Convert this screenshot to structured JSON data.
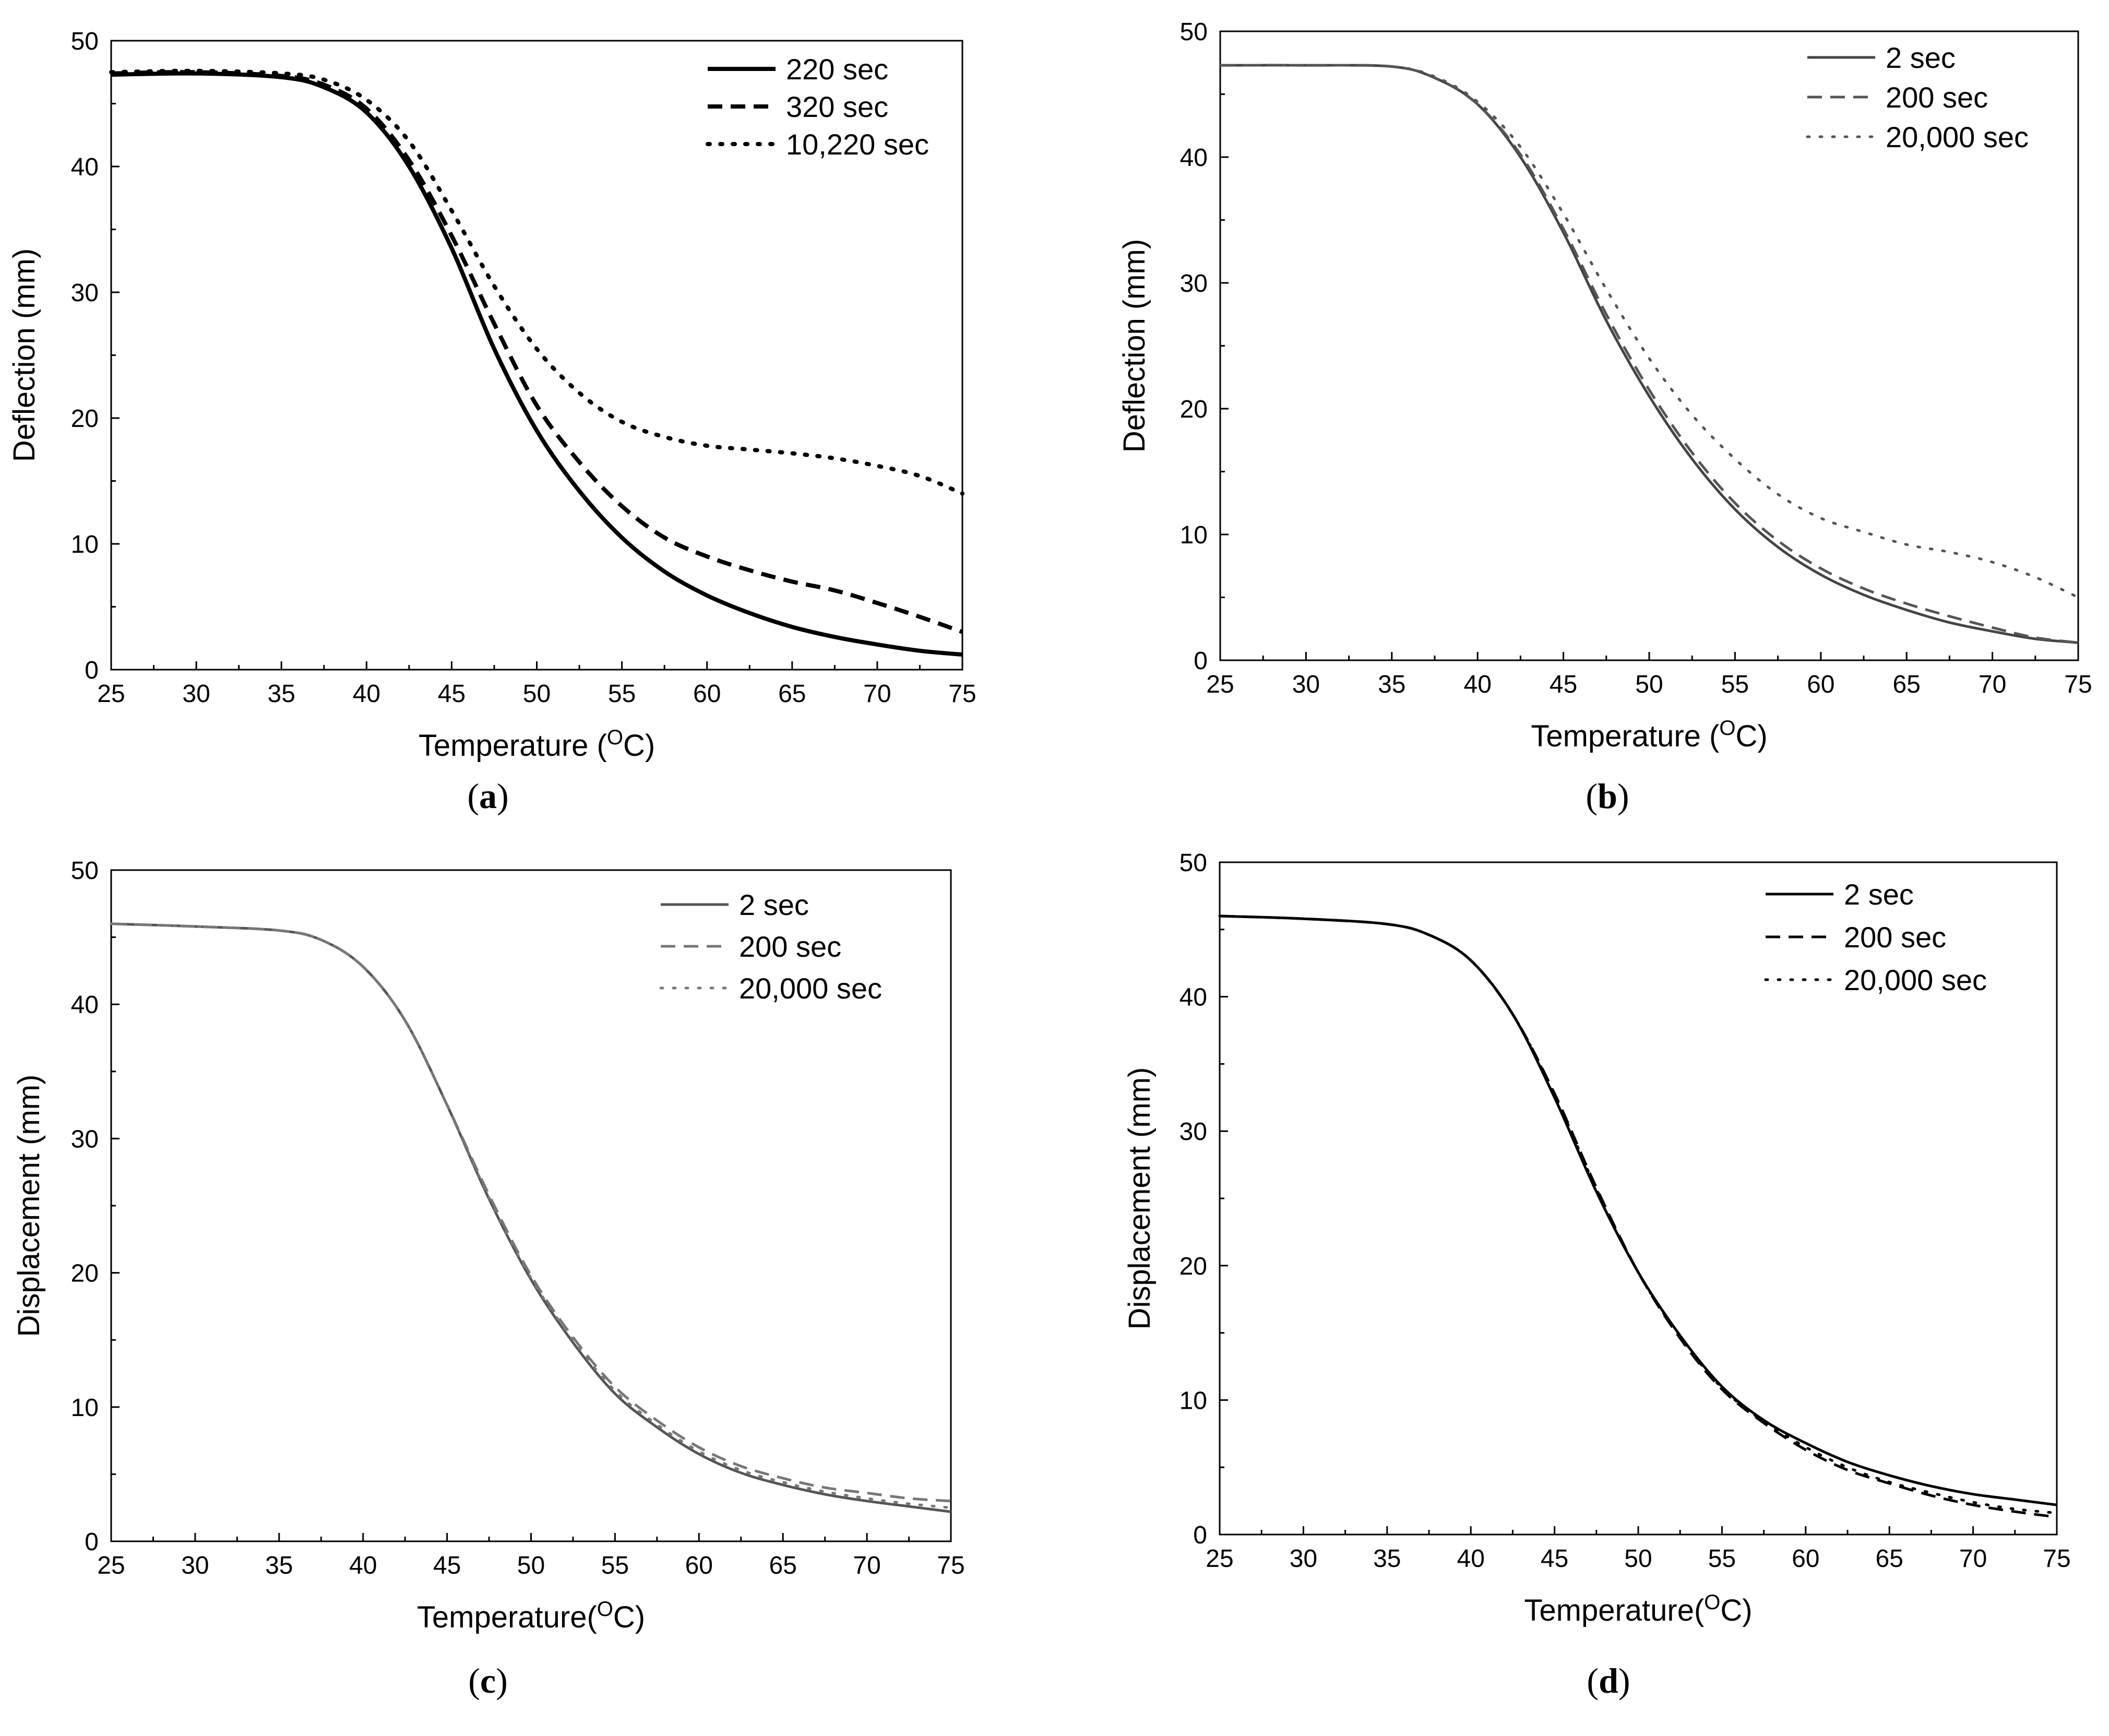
{
  "figure": {
    "panels": [
      "a",
      "b",
      "c",
      "d"
    ]
  },
  "chart_data": [
    {
      "type": "line",
      "caption_letter": "a",
      "caption_open": "(",
      "caption_close": ")",
      "xlabel": "Temperature (",
      "xlabel_sup": "O",
      "xlabel_end": "C)",
      "ylabel": "Deflection (mm)",
      "xlim": [
        25,
        75
      ],
      "ylim": [
        0,
        50
      ],
      "xticks": [
        25,
        30,
        35,
        40,
        45,
        50,
        55,
        60,
        65,
        70,
        75
      ],
      "yticks": [
        0,
        10,
        20,
        30,
        40,
        50
      ],
      "x": [
        25,
        30,
        35,
        37.5,
        40,
        42.5,
        45,
        47.5,
        50,
        52.5,
        55,
        57.5,
        60,
        62.5,
        65,
        67.5,
        70,
        72.5,
        75
      ],
      "series": [
        {
          "name": "220 sec",
          "style": "solid",
          "color": "#000000",
          "values": [
            47.3,
            47.4,
            47.1,
            46.3,
            44.3,
            40.0,
            33.5,
            25.5,
            19.0,
            14.2,
            10.5,
            7.8,
            5.9,
            4.5,
            3.4,
            2.6,
            2.0,
            1.5,
            1.2
          ]
        },
        {
          "name": "320 sec",
          "style": "dashed",
          "color": "#000000",
          "values": [
            47.4,
            47.5,
            47.2,
            46.5,
            44.6,
            40.5,
            34.5,
            27.5,
            21.0,
            16.5,
            13.0,
            10.5,
            9.0,
            7.9,
            7.0,
            6.3,
            5.3,
            4.2,
            3.0
          ]
        },
        {
          "name": "10,220 sec",
          "style": "dotted",
          "color": "#000000",
          "values": [
            47.5,
            47.6,
            47.4,
            46.9,
            45.3,
            42.0,
            36.5,
            30.5,
            25.5,
            22.0,
            19.7,
            18.5,
            17.8,
            17.5,
            17.2,
            16.8,
            16.2,
            15.4,
            14.0
          ]
        }
      ]
    },
    {
      "type": "line",
      "caption_letter": "b",
      "caption_open": "(",
      "caption_close": ")",
      "xlabel": "Temperature (",
      "xlabel_sup": "O",
      "xlabel_end": "C)",
      "ylabel": "Deflection (mm)",
      "xlim": [
        25,
        75
      ],
      "ylim": [
        0,
        50
      ],
      "xticks": [
        25,
        30,
        35,
        40,
        45,
        50,
        55,
        60,
        65,
        70,
        75
      ],
      "yticks": [
        0,
        10,
        20,
        30,
        40,
        50
      ],
      "x": [
        25,
        30,
        35,
        37.5,
        40,
        42.5,
        45,
        47.5,
        50,
        52.5,
        55,
        57.5,
        60,
        62.5,
        65,
        67.5,
        70,
        72.5,
        75
      ],
      "series": [
        {
          "name": "2 sec",
          "style": "solid",
          "color": "#444444",
          "values": [
            47.3,
            47.3,
            47.2,
            46.3,
            44.2,
            40.0,
            34.0,
            27.0,
            21.0,
            16.0,
            12.0,
            9.0,
            6.8,
            5.2,
            4.0,
            3.0,
            2.3,
            1.7,
            1.4
          ]
        },
        {
          "name": "200 sec",
          "style": "dashed",
          "color": "#555555",
          "values": [
            47.3,
            47.3,
            47.2,
            46.3,
            44.2,
            40.2,
            34.3,
            27.5,
            21.5,
            16.5,
            12.5,
            9.5,
            7.3,
            5.7,
            4.5,
            3.5,
            2.6,
            1.8,
            1.4
          ]
        },
        {
          "name": "20,000 sec",
          "style": "dotted",
          "color": "#555555",
          "values": [
            47.3,
            47.3,
            47.2,
            46.4,
            44.4,
            40.8,
            35.5,
            29.5,
            24.0,
            19.5,
            16.0,
            13.2,
            11.3,
            10.2,
            9.2,
            8.6,
            7.8,
            6.6,
            5.0
          ]
        }
      ]
    },
    {
      "type": "line",
      "caption_letter": "c",
      "caption_open": "(",
      "caption_close": ")",
      "xlabel": "Temperature(",
      "xlabel_sup": "O",
      "xlabel_end": "C)",
      "ylabel": "Displacement (mm)",
      "xlim": [
        25,
        75
      ],
      "ylim": [
        0,
        50
      ],
      "xticks": [
        25,
        30,
        35,
        40,
        45,
        50,
        55,
        60,
        65,
        70,
        75
      ],
      "yticks": [
        0,
        10,
        20,
        30,
        40,
        50
      ],
      "x": [
        25,
        30,
        35,
        37.5,
        40,
        42.5,
        45,
        47.5,
        50,
        52.5,
        55,
        57.5,
        60,
        62.5,
        65,
        67.5,
        70,
        72.5,
        75
      ],
      "series": [
        {
          "name": "2 sec",
          "style": "solid",
          "color": "#555555",
          "values": [
            46.0,
            45.8,
            45.5,
            44.8,
            42.8,
            38.8,
            32.5,
            25.5,
            19.5,
            14.8,
            11.0,
            8.5,
            6.5,
            5.1,
            4.2,
            3.5,
            3.0,
            2.6,
            2.2
          ]
        },
        {
          "name": "200 sec",
          "style": "dashed",
          "color": "#777777",
          "values": [
            46.0,
            45.8,
            45.5,
            44.8,
            42.8,
            38.8,
            32.5,
            25.8,
            19.8,
            15.2,
            11.5,
            9.0,
            7.0,
            5.6,
            4.7,
            4.0,
            3.6,
            3.2,
            3.0
          ]
        },
        {
          "name": "20,000 sec",
          "style": "dotted",
          "color": "#777777",
          "values": [
            46.0,
            45.8,
            45.5,
            44.8,
            42.8,
            38.8,
            32.5,
            25.6,
            19.6,
            15.0,
            11.2,
            8.7,
            6.7,
            5.3,
            4.4,
            3.7,
            3.2,
            2.8,
            2.5
          ]
        }
      ]
    },
    {
      "type": "line",
      "caption_letter": "d",
      "caption_open": "(",
      "caption_close": ")",
      "xlabel": "Temperature(",
      "xlabel_sup": "O",
      "xlabel_end": "C)",
      "ylabel": "Displacement (mm)",
      "xlim": [
        25,
        75
      ],
      "ylim": [
        0,
        50
      ],
      "xticks": [
        25,
        30,
        35,
        40,
        45,
        50,
        55,
        60,
        65,
        70,
        75
      ],
      "yticks": [
        0,
        10,
        20,
        30,
        40,
        50
      ],
      "x": [
        25,
        30,
        35,
        37.5,
        40,
        42.5,
        45,
        47.5,
        50,
        52.5,
        55,
        57.5,
        60,
        62.5,
        65,
        67.5,
        70,
        72.5,
        75
      ],
      "series": [
        {
          "name": "2 sec",
          "style": "solid",
          "color": "#000000",
          "values": [
            46.0,
            45.8,
            45.4,
            44.6,
            42.7,
            38.7,
            32.5,
            25.5,
            19.5,
            14.8,
            11.0,
            8.5,
            6.8,
            5.4,
            4.4,
            3.6,
            3.0,
            2.6,
            2.2
          ]
        },
        {
          "name": "200 sec",
          "style": "dashed",
          "color": "#000000",
          "values": [
            46.0,
            45.8,
            45.4,
            44.6,
            42.7,
            38.7,
            32.8,
            25.8,
            19.5,
            14.6,
            10.8,
            8.3,
            6.3,
            4.8,
            3.8,
            2.9,
            2.2,
            1.7,
            1.3
          ]
        },
        {
          "name": "20,000 sec",
          "style": "dotted",
          "color": "#000000",
          "values": [
            46.0,
            45.8,
            45.4,
            44.6,
            42.7,
            38.7,
            32.7,
            25.7,
            19.5,
            14.7,
            10.9,
            8.4,
            6.5,
            5.0,
            3.9,
            3.1,
            2.4,
            1.9,
            1.6
          ]
        }
      ]
    }
  ]
}
